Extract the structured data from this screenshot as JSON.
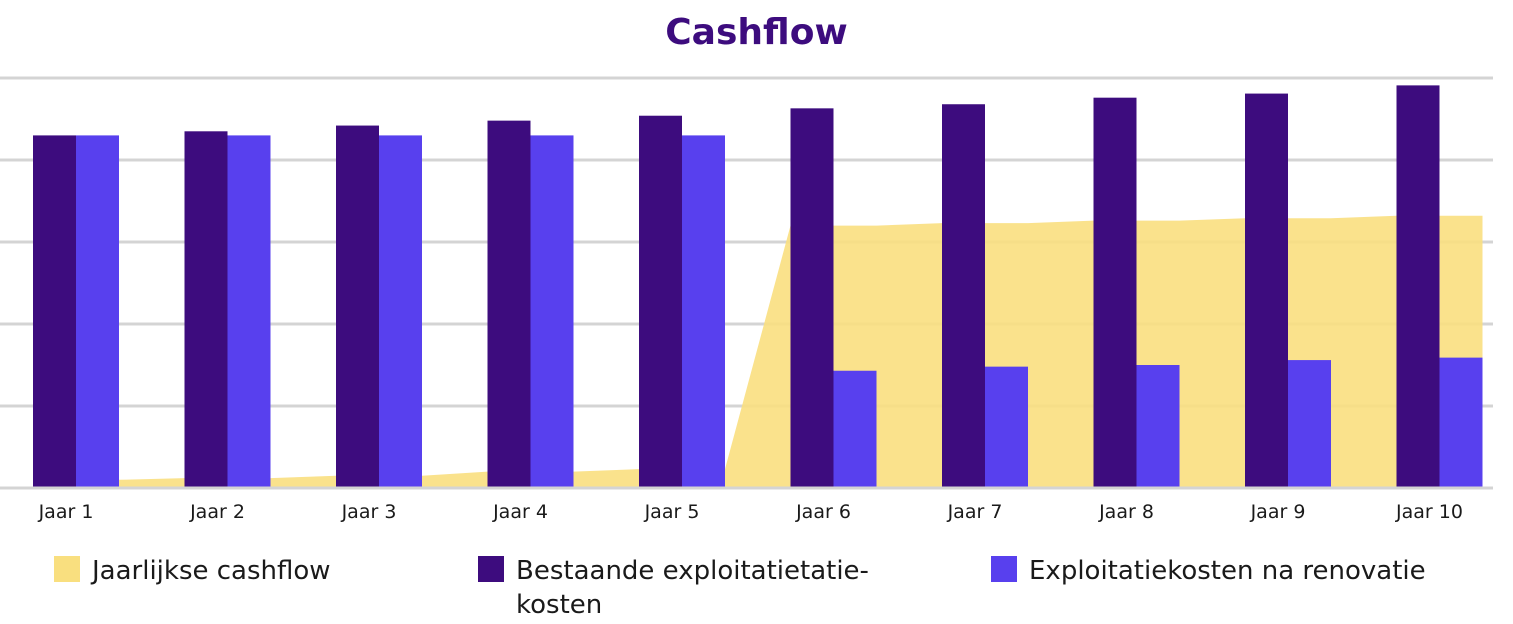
{
  "chart_data": {
    "type": "bar",
    "title": "Cashflow",
    "categories": [
      "Jaar 1",
      "Jaar 2",
      "Jaar 3",
      "Jaar 4",
      "Jaar 5",
      "Jaar 6",
      "Jaar 7",
      "Jaar 8",
      "Jaar 9",
      "Jaar 10"
    ],
    "ylim": [
      0,
      5
    ],
    "grid": true,
    "legend_position": "bottom",
    "y_axis_labels_visible": false,
    "series": [
      {
        "name": "Jaarlijkse cashflow",
        "type": "area",
        "color": "#f9df7f",
        "values": [
          0.1,
          0.12,
          0.15,
          0.2,
          0.23,
          3.2,
          3.23,
          3.26,
          3.29,
          3.32
        ]
      },
      {
        "name": "Bestaande exploitatietatie- kosten",
        "type": "bar",
        "color": "#3d0c7e",
        "values": [
          4.3,
          4.35,
          4.42,
          4.48,
          4.54,
          4.63,
          4.68,
          4.76,
          4.81,
          4.91
        ]
      },
      {
        "name": "Exploitatiekosten na renovatie",
        "type": "bar",
        "color": "#5840ee",
        "values": [
          4.3,
          4.3,
          4.3,
          4.3,
          4.3,
          1.43,
          1.48,
          1.5,
          1.56,
          1.59
        ]
      }
    ]
  },
  "legend": [
    {
      "label": "Jaarlijkse cashflow",
      "color": "#f9df7f"
    },
    {
      "label": "Bestaande exploitatietatie-\nkosten",
      "color": "#3d0c7e"
    },
    {
      "label": "Exploitatiekosten na renovatie",
      "color": "#5840ee"
    }
  ]
}
